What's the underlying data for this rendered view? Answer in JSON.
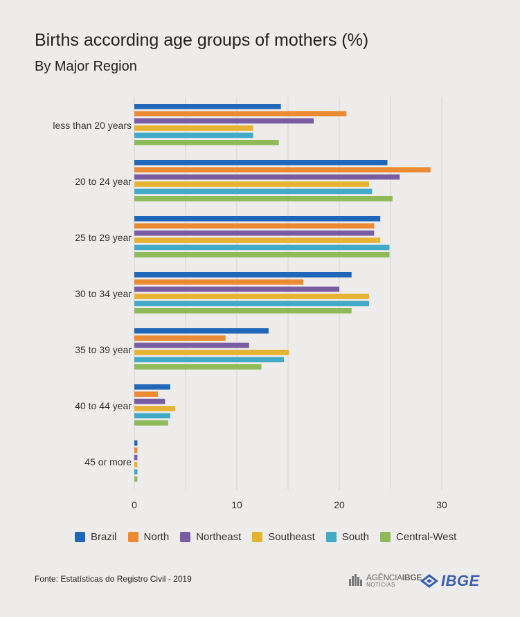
{
  "title": "Births according age groups of mothers (%)",
  "subtitle": "By Major Region",
  "source": "Fonte: Estatísticas do Registro Civil - 2019",
  "logos": {
    "agencia_main": "AGÊNCIA",
    "agencia_brand": "IBGE",
    "agencia_sub": "NOTÍCIAS",
    "ibge": "IBGE"
  },
  "chart_data": {
    "type": "bar",
    "orientation": "horizontal",
    "categories": [
      "less than 20 years",
      "20 to 24 year",
      "25 to 29 year",
      "30 to 34 year",
      "35 to 39 year",
      "40 to 44 year",
      "45  or more"
    ],
    "series": [
      {
        "name": "Brazil",
        "color": "#2066b9",
        "values": [
          14.3,
          24.7,
          24.0,
          21.2,
          13.1,
          3.5,
          0.3
        ]
      },
      {
        "name": "North",
        "color": "#ea8b34",
        "values": [
          20.7,
          28.9,
          23.4,
          16.5,
          8.9,
          2.3,
          0.3
        ]
      },
      {
        "name": "Northeast",
        "color": "#7a5ca3",
        "values": [
          17.5,
          25.9,
          23.4,
          20.0,
          11.2,
          3.0,
          0.3
        ]
      },
      {
        "name": "Southeast",
        "color": "#e6b231",
        "values": [
          11.6,
          22.9,
          24.0,
          22.9,
          15.1,
          4.0,
          0.3
        ]
      },
      {
        "name": "South",
        "color": "#42aac7",
        "values": [
          11.6,
          23.2,
          24.9,
          22.9,
          14.6,
          3.5,
          0.3
        ]
      },
      {
        "name": "Central-West",
        "color": "#8fba5a",
        "values": [
          14.1,
          25.2,
          24.9,
          21.2,
          12.4,
          3.3,
          0.3
        ]
      }
    ],
    "xticks": [
      "0",
      "10",
      "20",
      "30"
    ],
    "xlim": [
      0,
      30
    ],
    "grid": true,
    "legend": "bottom"
  }
}
